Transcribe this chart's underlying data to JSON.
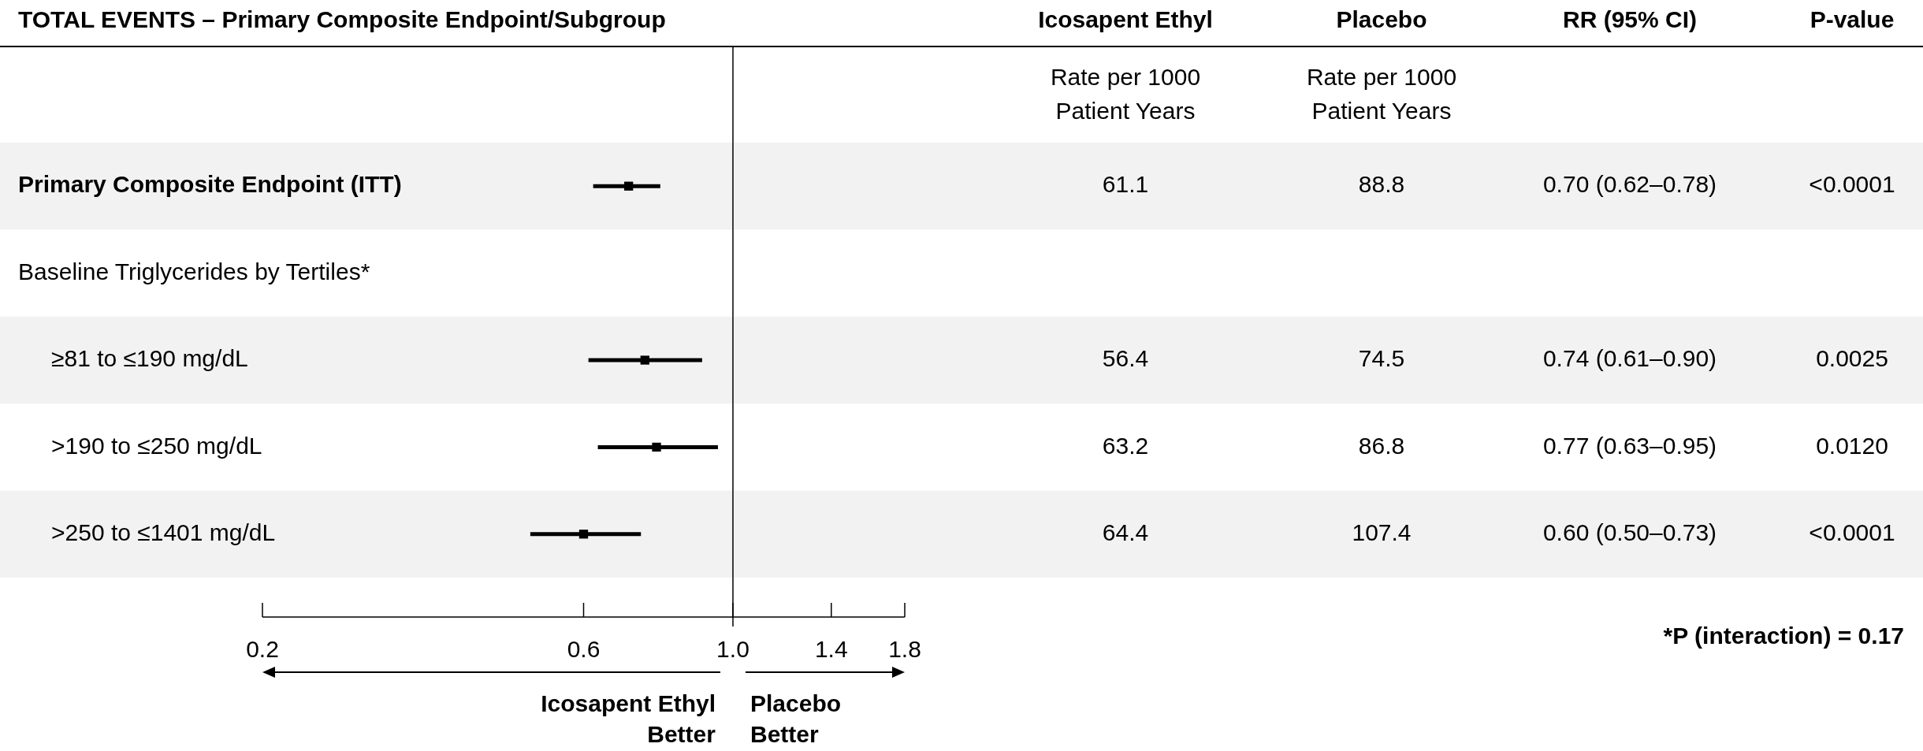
{
  "chart_data": {
    "type": "scatter",
    "orientation": "horizontal",
    "log": "x",
    "marker": "square",
    "title": "TOTAL EVENTS – Primary Composite Endpoint/Subgroup",
    "categories": [
      "Primary Composite Endpoint (ITT)",
      "Baseline Triglycerides by Tertiles*",
      "≥81 to ≤190 mg/dL",
      ">190 to ≤250 mg/dL",
      ">250 to ≤1401 mg/dL"
    ],
    "values": [
      0.7,
      null,
      0.74,
      0.77,
      0.6
    ],
    "errors": [
      [
        0.62,
        0.78
      ],
      null,
      [
        0.61,
        0.9
      ],
      [
        0.63,
        0.95
      ],
      [
        0.5,
        0.73
      ]
    ],
    "value_labels": [
      "0.70 (0.62–0.78)",
      null,
      "0.74 (0.61–0.90)",
      "0.77 (0.63–0.95)",
      "0.60 (0.50–0.73)"
    ],
    "color": "#000000",
    "xlim": [
      0.2,
      1.8
    ],
    "xticks": [
      0.2,
      0.6,
      {
        "value": 1.0,
        "label": "1.0"
      },
      1.4,
      1.8
    ],
    "ref_lines": [
      {
        "axis": "x",
        "value": 1.0,
        "color": "#000000"
      }
    ],
    "annotations": [
      "Icosapent Ethyl",
      "Placebo",
      "RR (95% CI)",
      "P-value",
      "Rate per 1000 Patient Years",
      "Rate per 1000 Patient Years",
      "61.1",
      "88.8",
      "<0.0001",
      "56.4",
      "74.5",
      "0.0025",
      "63.2",
      "86.8",
      "0.0120",
      "64.4",
      "107.4",
      "<0.0001",
      "Icosapent Ethyl Better",
      "Placebo Better",
      "*P (interaction) = 0.17"
    ]
  }
}
